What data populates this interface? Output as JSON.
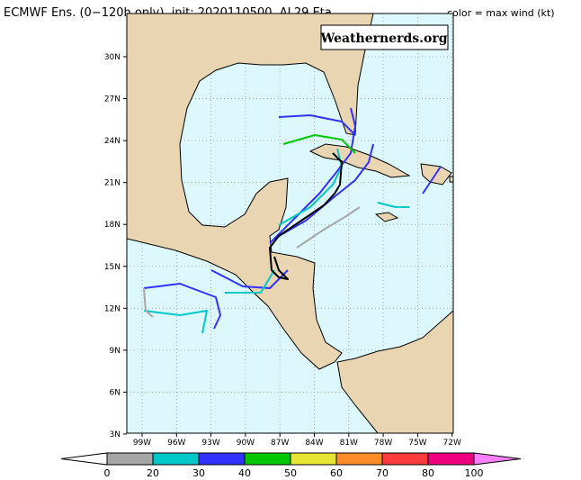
{
  "header": {
    "title": "ECMWF Ens. (0−120h only), init: 2020110500, AL29 Eta",
    "legend_label": "color = max wind (kt)"
  },
  "watermark": "Weathernerds.org",
  "lat_labels": [
    "30N",
    "27N",
    "24N",
    "21N",
    "18N",
    "15N",
    "12N",
    "9N",
    "6N",
    "3N"
  ],
  "lon_labels": [
    "99W",
    "96W",
    "93W",
    "90W",
    "87W",
    "84W",
    "81W",
    "78W",
    "75W",
    "72W"
  ],
  "colorbar": {
    "labels": [
      "0",
      "20",
      "30",
      "40",
      "50",
      "60",
      "70",
      "80",
      "100"
    ],
    "colors": [
      "#a6a6a6",
      "#00c8c8",
      "#3232ff",
      "#00c800",
      "#e6e632",
      "#ff8c28",
      "#ff3c3c",
      "#f00080"
    ]
  }
}
